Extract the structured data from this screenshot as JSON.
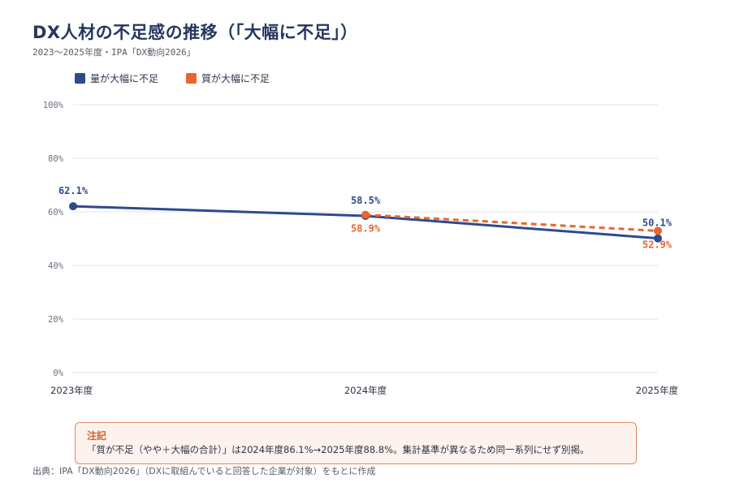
{
  "header": {
    "title": "DX人材の不足感の推移（「大幅に不足」）",
    "subtitle": "2023〜2025年度・IPA「DX動向2026」"
  },
  "chart_data": {
    "type": "line",
    "categories": [
      "2023年度",
      "2024年度",
      "2025年度"
    ],
    "ylim": [
      0,
      100
    ],
    "yticks": [
      0,
      20,
      40,
      60,
      80,
      100
    ],
    "ytick_labels": [
      "0%",
      "20%",
      "40%",
      "60%",
      "80%",
      "100%"
    ],
    "grid": true,
    "legend_position": "top-left",
    "series": [
      {
        "name": "量が大幅に不足",
        "color": "#2e4a8c",
        "style": "solid",
        "values": [
          62.1,
          58.5,
          50.1
        ],
        "labels": [
          "62.1%",
          "58.5%",
          "50.1%"
        ]
      },
      {
        "name": "質が大幅に不足",
        "color": "#e8662f",
        "style": "dashed",
        "values": [
          null,
          58.9,
          52.9
        ],
        "labels": [
          "",
          "58.9%",
          "52.9%"
        ]
      }
    ]
  },
  "note": {
    "title": "注記",
    "text": "「質が不足（やや＋大幅の合計）」は2024年度86.1%→2025年度88.8%。集計基準が異なるため同一系列にせず別掲。"
  },
  "source": "出典：IPA「DX動向2026」（DXに取組んでいると回答した企業が対象）をもとに作成"
}
